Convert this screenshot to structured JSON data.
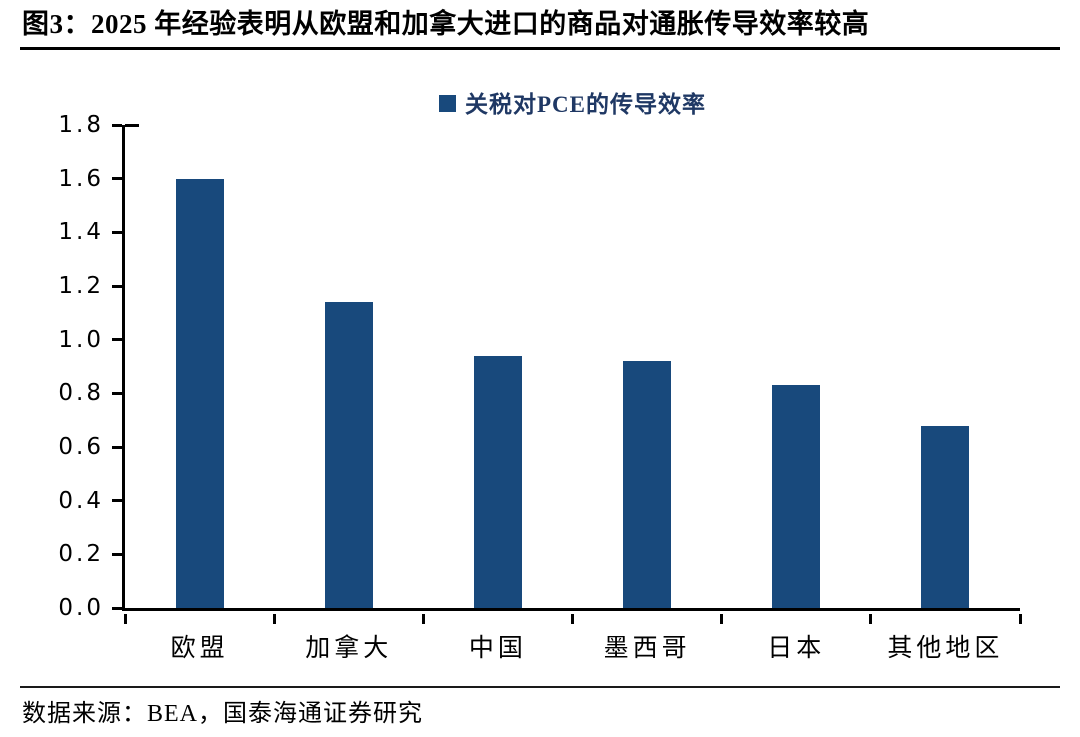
{
  "title": "图3：2025 年经验表明从欧盟和加拿大进口的商品对通胀传导效率较高",
  "legend": {
    "label": "关税对PCE的传导效率"
  },
  "source": "数据来源：BEA，国泰海通证券研究",
  "colors": {
    "bar": "#18497C",
    "legend_text": "#1F3864",
    "axis": "#000000"
  },
  "chart_data": {
    "type": "bar",
    "title": "关税对PCE的传导效率",
    "categories": [
      "欧盟",
      "加拿大",
      "中国",
      "墨西哥",
      "日本",
      "其他地区"
    ],
    "values": [
      1.6,
      1.14,
      0.94,
      0.92,
      0.83,
      0.68
    ],
    "xlabel": "",
    "ylabel": "",
    "ylim": [
      0,
      1.8
    ],
    "yticks": [
      "0.0",
      "0.2",
      "0.4",
      "0.6",
      "0.8",
      "1.0",
      "1.2",
      "1.4",
      "1.6",
      "1.8"
    ],
    "grid": false,
    "legend_position": "top-center",
    "legend_entries": [
      "关税对PCE的传导效率"
    ]
  }
}
